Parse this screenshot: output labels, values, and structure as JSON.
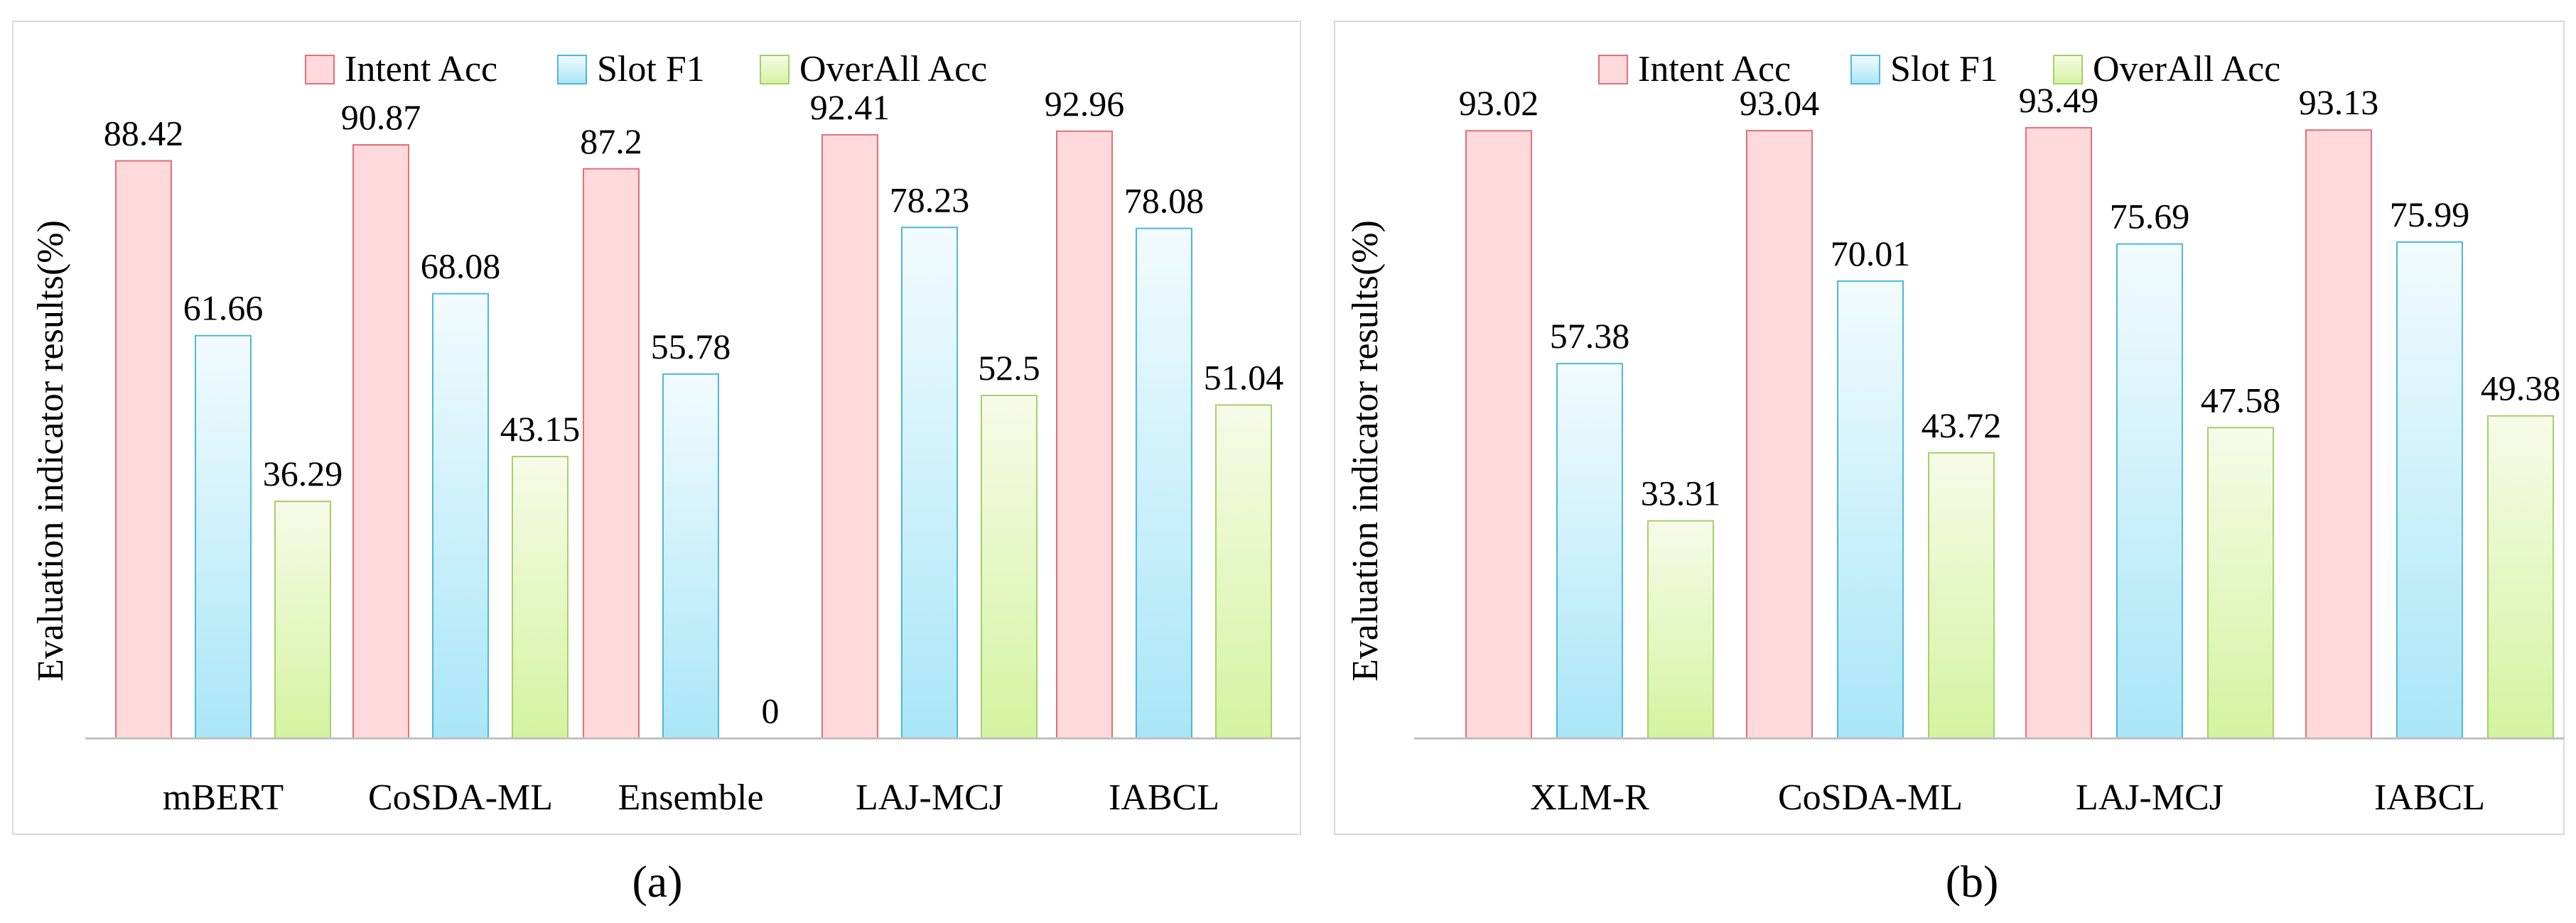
{
  "chart_data": [
    {
      "type": "bar",
      "panel_label": "(a)",
      "ylabel": "Evaluation indicator results(%)",
      "ylim": [
        0,
        100
      ],
      "grid": false,
      "legend_position": "top-center",
      "categories": [
        "mBERT",
        "CoSDA-ML",
        "Ensemble",
        "LAJ-MCJ",
        "IABCL"
      ],
      "series": [
        {
          "name": "Intent Acc",
          "values": [
            88.42,
            90.87,
            87.2,
            92.41,
            92.96
          ]
        },
        {
          "name": "Slot F1",
          "values": [
            61.66,
            68.08,
            55.78,
            78.23,
            78.08
          ]
        },
        {
          "name": "OverAll Acc",
          "values": [
            36.29,
            43.15,
            0,
            52.5,
            51.04
          ]
        }
      ],
      "data_labels": [
        [
          "88.42",
          "90.87",
          "87.2",
          "92.41",
          "92.96"
        ],
        [
          "61.66",
          "68.08",
          "55.78",
          "78.23",
          "78.08"
        ],
        [
          "36.29",
          "43.15",
          "0",
          "52.5",
          "51.04"
        ]
      ]
    },
    {
      "type": "bar",
      "panel_label": "(b)",
      "ylabel": "Evaluation indicator results(%)",
      "ylim": [
        0,
        100
      ],
      "grid": false,
      "legend_position": "top-center",
      "categories": [
        "XLM-R",
        "CoSDA-ML",
        "LAJ-MCJ",
        "IABCL"
      ],
      "series": [
        {
          "name": "Intent Acc",
          "values": [
            93.02,
            93.04,
            93.49,
            93.13
          ]
        },
        {
          "name": "Slot F1",
          "values": [
            57.38,
            70.01,
            75.69,
            75.99
          ]
        },
        {
          "name": "OverAll Acc",
          "values": [
            33.31,
            43.72,
            47.58,
            49.38
          ]
        }
      ],
      "data_labels": [
        [
          "93.02",
          "93.04",
          "93.49",
          "93.13"
        ],
        [
          "57.38",
          "70.01",
          "75.69",
          "75.99"
        ],
        [
          "33.31",
          "43.72",
          "47.58",
          "49.38"
        ]
      ]
    }
  ],
  "colors": {
    "intent_fill": "#ffd9dc",
    "intent_stroke": "#e0707a",
    "slot_top": "#f2fbfe",
    "slot_bottom": "#a9e6f7",
    "slot_stroke": "#4fb8d8",
    "overall_top": "#f6fbe8",
    "overall_bottom": "#d4f3a0",
    "overall_stroke": "#a6cf6a",
    "axis": "#bfbfbf",
    "frame": "#d9d9d9",
    "text": "#000000"
  }
}
